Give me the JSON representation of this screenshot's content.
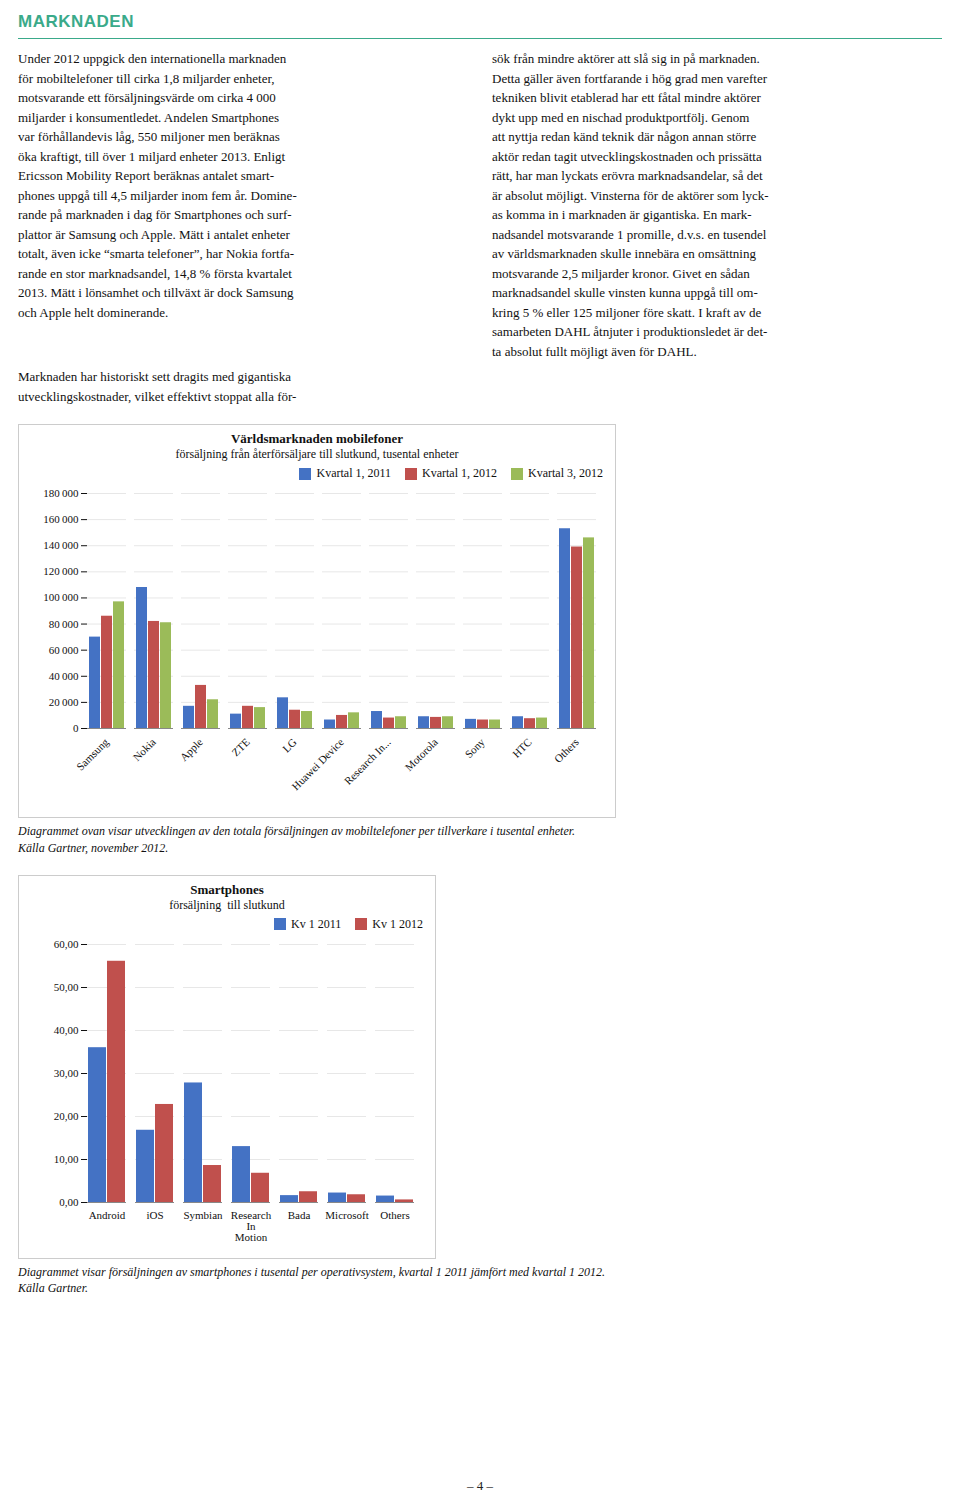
{
  "title": "MARKNADEN",
  "text": [
    "Under 2012 uppgick den internationella marknaden\nför mobiltelefoner till cirka 1,8 miljarder enheter,\nmotsvarande ett försäljningsvärde om cirka 4 000\nmiljarder i konsumentledet. Andelen Smartphones\nvar förhållandevis låg, 550 miljoner men beräknas\nöka kraftigt, till över 1 miljard enheter 2013. Enligt\nEricsson Mobility Report beräknas antalet smart-\nphones uppgå till 4,5 miljarder inom fem år. Domine-\nrande på marknaden i dag för Smartphones och surf-\nplattor är Samsung och Apple. Mätt i antalet enheter\ntotalt, även icke “smarta telefoner”, har Nokia fortfa-\nrande en stor marknadsandel, 14,8 % första kvartalet\n2013. Mätt i lönsamhet och tillväxt är dock Samsung\noch Apple helt dominerande.",
    "sök från mindre aktörer att slå sig in på marknaden.\nDetta gäller även fortfarande i hög grad men varefter\ntekniken blivit etablerad har ett fåtal mindre aktörer\ndykt upp med en nischad produktportfölj. Genom\natt nyttja redan känd teknik där någon annan större\naktör redan tagit utvecklingskostnaden och prissätta\nrätt, har man lyckats erövra marknadsandelar, så det\när absolut möjligt. Vinsterna för de aktörer som lyck-\nas komma in i marknaden är gigantiska. En mark-\nnadsandel motsvarande 1 promille, d.v.s. en tusendel\nav världsmarknaden skulle innebära en omsättning\nmotsvarande 2,5 miljarder kronor. Givet en sådan\nmarknadsandel skulle vinsten kunna uppgå till om-\nkring 5 % eller 125 miljoner före skatt. I kraft av de\nsamarbeten DAHL åtnjuter i produktionsledet är det-\nta absolut fullt möjligt även för DAHL.",
    "Marknaden har historiskt sett dragits med gigantiska\nutvecklingskostnader, vilket effektivt stoppat alla för-"
  ],
  "footer": "– 4 –",
  "chart_data": [
    {
      "type": "bar",
      "title": "Världsmarknaden mobilefoner",
      "subtitle": "försäljning från återförsäljare till slutkund, tusental enheter",
      "categories": [
        "Samsung",
        "Nokia",
        "Apple",
        "ZTE",
        "LG",
        "Huawei Device",
        "Research In...",
        "Motorola",
        "Sony",
        "HTC",
        "Others"
      ],
      "series": [
        {
          "name": "Kvartal 1, 2011",
          "color": "#4472c4",
          "values": [
            70000,
            108000,
            17000,
            11000,
            23500,
            6500,
            13000,
            9000,
            7000,
            9000,
            153000
          ]
        },
        {
          "name": "Kvartal 1, 2012",
          "color": "#c0504d",
          "values": [
            86000,
            82000,
            33000,
            17000,
            14000,
            10000,
            8000,
            8500,
            6500,
            7500,
            139000
          ]
        },
        {
          "name": "Kvartal 3, 2012",
          "color": "#9bbb59",
          "values": [
            97000,
            81000,
            22000,
            16000,
            13000,
            12000,
            9000,
            9000,
            6500,
            8000,
            146000
          ]
        }
      ],
      "ylim": [
        0,
        180000
      ],
      "yticks": [
        0,
        {
          "value": 20000,
          "label": "20 000"
        },
        {
          "value": 40000,
          "label": "40 000"
        },
        {
          "value": 60000,
          "label": "60 000"
        },
        {
          "value": 80000,
          "label": "80 000"
        },
        {
          "value": 100000,
          "label": "100 000"
        },
        {
          "value": 120000,
          "label": "120 000"
        },
        {
          "value": 140000,
          "label": "140 000"
        },
        {
          "value": 160000,
          "label": "160 000"
        },
        {
          "value": 180000,
          "label": "180 000"
        }
      ],
      "grid": true,
      "legend": "upper right",
      "caption": [
        "Diagrammet ovan visar utvecklingen av den totala försäljningen av mobiltelefoner per tillverkare i tusental enheter.",
        "Källa Gartner, november 2012."
      ]
    },
    {
      "type": "bar",
      "title": "Smartphones",
      "subtitle": "försäljning  till slutkund",
      "categories": [
        "Android",
        "iOS",
        "Symbian",
        "Research\nIn\nMotion",
        "Bada",
        "Microsoft",
        "Others"
      ],
      "series": [
        {
          "name": "Kv 1 2011",
          "color": "#4472c4",
          "values": [
            36.0,
            16.8,
            27.8,
            13.0,
            1.6,
            2.2,
            1.5
          ]
        },
        {
          "name": "Kv 1 2012",
          "color": "#c0504d",
          "values": [
            56.1,
            22.8,
            8.6,
            6.8,
            2.5,
            1.8,
            0.6
          ]
        }
      ],
      "ylim": [
        0,
        60
      ],
      "yticks": [
        {
          "value": 0,
          "label": "0,00"
        },
        {
          "value": 10,
          "label": "10,00"
        },
        {
          "value": 20,
          "label": "20,00"
        },
        {
          "value": 30,
          "label": "30,00"
        },
        {
          "value": 40,
          "label": "40,00"
        },
        {
          "value": 50,
          "label": "50,00"
        },
        {
          "value": 60,
          "label": "60,00"
        }
      ],
      "grid": true,
      "legend": "upper right",
      "caption": [
        "Diagrammet visar försäljningen av smartphones i tusental per operativsystem, kvartal 1 2011 jämfört med kvartal 1 2012.",
        "Källa Gartner."
      ]
    }
  ]
}
